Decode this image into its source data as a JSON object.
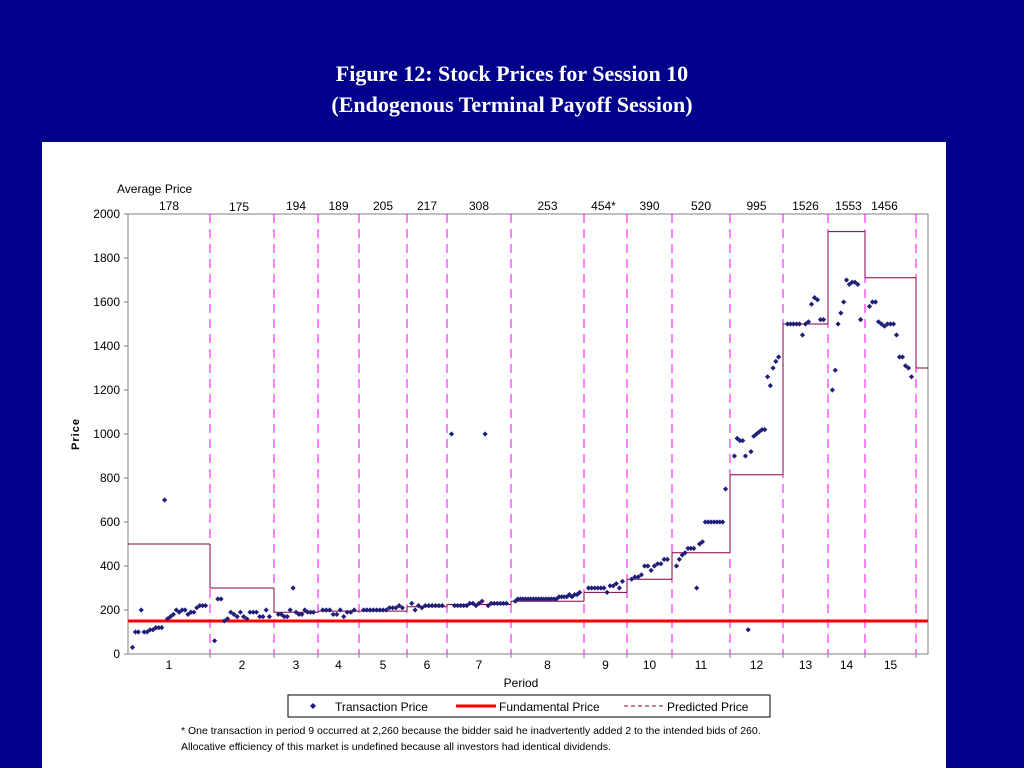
{
  "title": {
    "line1": "Figure 12: Stock Prices for Session 10",
    "line2": "(Endogenous Terminal Payoff Session)"
  },
  "chart_data": {
    "type": "scatter",
    "xlabel": "Period",
    "ylabel": "Price",
    "ylim": [
      0,
      2000
    ],
    "yticks": [
      0,
      200,
      400,
      600,
      800,
      1000,
      1200,
      1400,
      1600,
      1800,
      2000
    ],
    "grid": false,
    "legend_position": "bottom",
    "average_price_label": "Average Price",
    "periods": [
      {
        "label": "1",
        "average": "178",
        "predicted": 500
      },
      {
        "label": "2",
        "average": "175",
        "predicted": 300
      },
      {
        "label": "3",
        "average": "194",
        "predicted": 190
      },
      {
        "label": "4",
        "average": "189",
        "predicted": 195
      },
      {
        "label": "5",
        "average": "205",
        "predicted": 195
      },
      {
        "label": "6",
        "average": "217",
        "predicted": 215
      },
      {
        "label": "7",
        "average": "308",
        "predicted": 225
      },
      {
        "label": "8",
        "average": "253",
        "predicted": 240
      },
      {
        "label": "9",
        "average": "454*",
        "predicted": 280
      },
      {
        "label": "10",
        "average": "390",
        "predicted": 340
      },
      {
        "label": "11",
        "average": "520",
        "predicted": 460
      },
      {
        "label": "12",
        "average": "995",
        "predicted": 815
      },
      {
        "label": "13",
        "average": "1526",
        "predicted": 1500
      },
      {
        "label": "14",
        "average": "1553",
        "predicted": 1920
      },
      {
        "label": "15",
        "average": "1456",
        "predicted": 1710
      }
    ],
    "extra_predicted": 1300,
    "fundamental_price": 150,
    "series": [
      {
        "name": "Transaction Price",
        "color": "#1f1f7a",
        "marker": "diamond",
        "points": [
          [
            1,
            30
          ],
          [
            1,
            100
          ],
          [
            1,
            100
          ],
          [
            1,
            200
          ],
          [
            1,
            100
          ],
          [
            1,
            100
          ],
          [
            1,
            110
          ],
          [
            1,
            110
          ],
          [
            1,
            120
          ],
          [
            1,
            120
          ],
          [
            1,
            120
          ],
          [
            1,
            700
          ],
          [
            1,
            160
          ],
          [
            1,
            170
          ],
          [
            1,
            180
          ],
          [
            1,
            200
          ],
          [
            1,
            190
          ],
          [
            1,
            200
          ],
          [
            1,
            200
          ],
          [
            1,
            180
          ],
          [
            1,
            190
          ],
          [
            1,
            190
          ],
          [
            1,
            210
          ],
          [
            1,
            220
          ],
          [
            1,
            220
          ],
          [
            1,
            220
          ],
          [
            2,
            60
          ],
          [
            2,
            250
          ],
          [
            2,
            250
          ],
          [
            2,
            150
          ],
          [
            2,
            160
          ],
          [
            2,
            190
          ],
          [
            2,
            180
          ],
          [
            2,
            170
          ],
          [
            2,
            190
          ],
          [
            2,
            170
          ],
          [
            2,
            160
          ],
          [
            2,
            190
          ],
          [
            2,
            190
          ],
          [
            2,
            190
          ],
          [
            2,
            170
          ],
          [
            2,
            170
          ],
          [
            2,
            200
          ],
          [
            2,
            170
          ],
          [
            3,
            180
          ],
          [
            3,
            180
          ],
          [
            3,
            170
          ],
          [
            3,
            170
          ],
          [
            3,
            200
          ],
          [
            3,
            300
          ],
          [
            3,
            190
          ],
          [
            3,
            180
          ],
          [
            3,
            180
          ],
          [
            3,
            200
          ],
          [
            3,
            190
          ],
          [
            3,
            190
          ],
          [
            3,
            190
          ],
          [
            4,
            200
          ],
          [
            4,
            200
          ],
          [
            4,
            200
          ],
          [
            4,
            180
          ],
          [
            4,
            180
          ],
          [
            4,
            200
          ],
          [
            4,
            170
          ],
          [
            4,
            190
          ],
          [
            4,
            190
          ],
          [
            4,
            200
          ],
          [
            5,
            200
          ],
          [
            5,
            200
          ],
          [
            5,
            200
          ],
          [
            5,
            200
          ],
          [
            5,
            200
          ],
          [
            5,
            200
          ],
          [
            5,
            200
          ],
          [
            5,
            200
          ],
          [
            5,
            210
          ],
          [
            5,
            210
          ],
          [
            5,
            210
          ],
          [
            5,
            220
          ],
          [
            5,
            210
          ],
          [
            6,
            230
          ],
          [
            6,
            200
          ],
          [
            6,
            220
          ],
          [
            6,
            210
          ],
          [
            6,
            220
          ],
          [
            6,
            220
          ],
          [
            6,
            220
          ],
          [
            6,
            220
          ],
          [
            6,
            220
          ],
          [
            6,
            220
          ],
          [
            7,
            1000
          ],
          [
            7,
            220
          ],
          [
            7,
            220
          ],
          [
            7,
            220
          ],
          [
            7,
            220
          ],
          [
            7,
            220
          ],
          [
            7,
            230
          ],
          [
            7,
            230
          ],
          [
            7,
            220
          ],
          [
            7,
            230
          ],
          [
            7,
            240
          ],
          [
            7,
            1000
          ],
          [
            7,
            220
          ],
          [
            7,
            230
          ],
          [
            7,
            230
          ],
          [
            7,
            230
          ],
          [
            7,
            230
          ],
          [
            7,
            230
          ],
          [
            7,
            230
          ],
          [
            8,
            240
          ],
          [
            8,
            250
          ],
          [
            8,
            250
          ],
          [
            8,
            250
          ],
          [
            8,
            250
          ],
          [
            8,
            250
          ],
          [
            8,
            250
          ],
          [
            8,
            250
          ],
          [
            8,
            250
          ],
          [
            8,
            250
          ],
          [
            8,
            250
          ],
          [
            8,
            250
          ],
          [
            8,
            250
          ],
          [
            8,
            250
          ],
          [
            8,
            250
          ],
          [
            8,
            250
          ],
          [
            8,
            250
          ],
          [
            8,
            260
          ],
          [
            8,
            260
          ],
          [
            8,
            260
          ],
          [
            8,
            260
          ],
          [
            8,
            270
          ],
          [
            8,
            260
          ],
          [
            8,
            270
          ],
          [
            8,
            270
          ],
          [
            8,
            280
          ],
          [
            9,
            300
          ],
          [
            9,
            300
          ],
          [
            9,
            300
          ],
          [
            9,
            300
          ],
          [
            9,
            300
          ],
          [
            9,
            300
          ],
          [
            9,
            280
          ],
          [
            9,
            310
          ],
          [
            9,
            310
          ],
          [
            9,
            320
          ],
          [
            9,
            300
          ],
          [
            9,
            330
          ],
          [
            10,
            340
          ],
          [
            10,
            350
          ],
          [
            10,
            350
          ],
          [
            10,
            360
          ],
          [
            10,
            400
          ],
          [
            10,
            400
          ],
          [
            10,
            380
          ],
          [
            10,
            400
          ],
          [
            10,
            410
          ],
          [
            10,
            410
          ],
          [
            10,
            430
          ],
          [
            10,
            430
          ],
          [
            11,
            400
          ],
          [
            11,
            430
          ],
          [
            11,
            450
          ],
          [
            11,
            460
          ],
          [
            11,
            480
          ],
          [
            11,
            480
          ],
          [
            11,
            480
          ],
          [
            11,
            300
          ],
          [
            11,
            500
          ],
          [
            11,
            510
          ],
          [
            11,
            600
          ],
          [
            11,
            600
          ],
          [
            11,
            600
          ],
          [
            11,
            600
          ],
          [
            11,
            600
          ],
          [
            11,
            600
          ],
          [
            11,
            600
          ],
          [
            11,
            750
          ],
          [
            12,
            900
          ],
          [
            12,
            980
          ],
          [
            12,
            970
          ],
          [
            12,
            970
          ],
          [
            12,
            900
          ],
          [
            12,
            110
          ],
          [
            12,
            920
          ],
          [
            12,
            990
          ],
          [
            12,
            1000
          ],
          [
            12,
            1010
          ],
          [
            12,
            1020
          ],
          [
            12,
            1020
          ],
          [
            12,
            1260
          ],
          [
            12,
            1220
          ],
          [
            12,
            1300
          ],
          [
            12,
            1330
          ],
          [
            12,
            1350
          ],
          [
            13,
            1500
          ],
          [
            13,
            1500
          ],
          [
            13,
            1500
          ],
          [
            13,
            1500
          ],
          [
            13,
            1500
          ],
          [
            13,
            1450
          ],
          [
            13,
            1500
          ],
          [
            13,
            1510
          ],
          [
            13,
            1590
          ],
          [
            13,
            1620
          ],
          [
            13,
            1610
          ],
          [
            13,
            1520
          ],
          [
            13,
            1520
          ],
          [
            14,
            1200
          ],
          [
            14,
            1290
          ],
          [
            14,
            1500
          ],
          [
            14,
            1550
          ],
          [
            14,
            1600
          ],
          [
            14,
            1700
          ],
          [
            14,
            1680
          ],
          [
            14,
            1690
          ],
          [
            14,
            1690
          ],
          [
            14,
            1680
          ],
          [
            14,
            1520
          ],
          [
            15,
            1580
          ],
          [
            15,
            1600
          ],
          [
            15,
            1600
          ],
          [
            15,
            1510
          ],
          [
            15,
            1500
          ],
          [
            15,
            1490
          ],
          [
            15,
            1500
          ],
          [
            15,
            1500
          ],
          [
            15,
            1500
          ],
          [
            15,
            1450
          ],
          [
            15,
            1350
          ],
          [
            15,
            1350
          ],
          [
            15,
            1310
          ],
          [
            15,
            1300
          ],
          [
            15,
            1260
          ]
        ]
      }
    ],
    "legend": {
      "transaction": "Transaction Price",
      "fundamental": "Fundamental Price",
      "predicted": "Predicted Price"
    },
    "colors": {
      "transaction": "#1f1f7a",
      "fundamental": "#ff0000",
      "predicted": "#800040",
      "divider": "#ff00ff"
    },
    "footnote1": "* One transaction in period 9 occurred at 2,260 because the bidder said he inadvertently added 2 to the intended bids of 260.",
    "footnote2": "Allocative efficiency of this market is undefined because all investors had identical dividends."
  }
}
